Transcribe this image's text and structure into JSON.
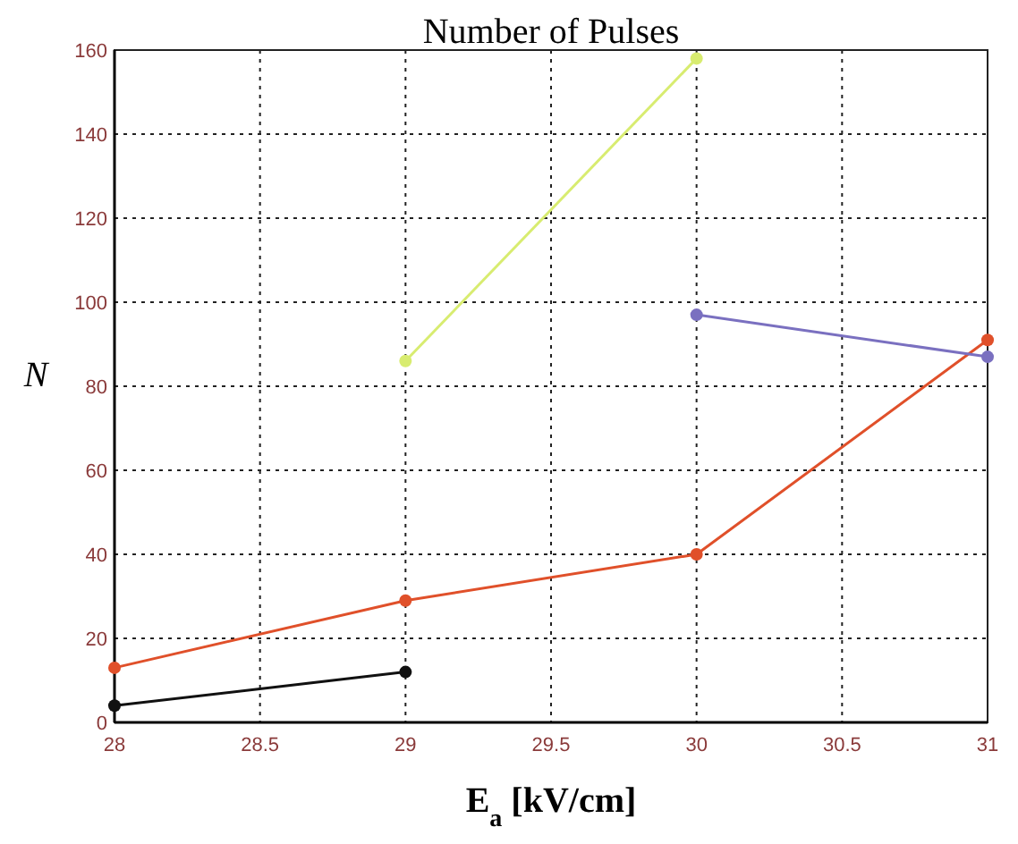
{
  "chart_data": {
    "type": "line",
    "title": "Number of Pulses",
    "xlabel": "E$_{a}$ [kV/cm]",
    "ylabel": "N",
    "xlim": [
      28,
      31
    ],
    "xticks": [
      28,
      28.5,
      29,
      29.5,
      30,
      30.5,
      31
    ],
    "ylim": [
      0,
      160
    ],
    "yticks": [
      0,
      20,
      40,
      60,
      80,
      100,
      120,
      140,
      160
    ],
    "grid": true,
    "marker": "circle",
    "line_style": "solid",
    "series": [
      {
        "color": "#111111",
        "x": [
          28,
          29
        ],
        "values": [
          4,
          12
        ]
      },
      {
        "color": "#e0502a",
        "x": [
          28,
          29,
          30,
          31
        ],
        "values": [
          13,
          29,
          40,
          91
        ]
      },
      {
        "color": "#d8ec70",
        "x": [
          29,
          30
        ],
        "values": [
          86,
          158
        ]
      },
      {
        "color": "#7a70c0",
        "x": [
          30,
          31
        ],
        "values": [
          97,
          87
        ]
      }
    ]
  }
}
